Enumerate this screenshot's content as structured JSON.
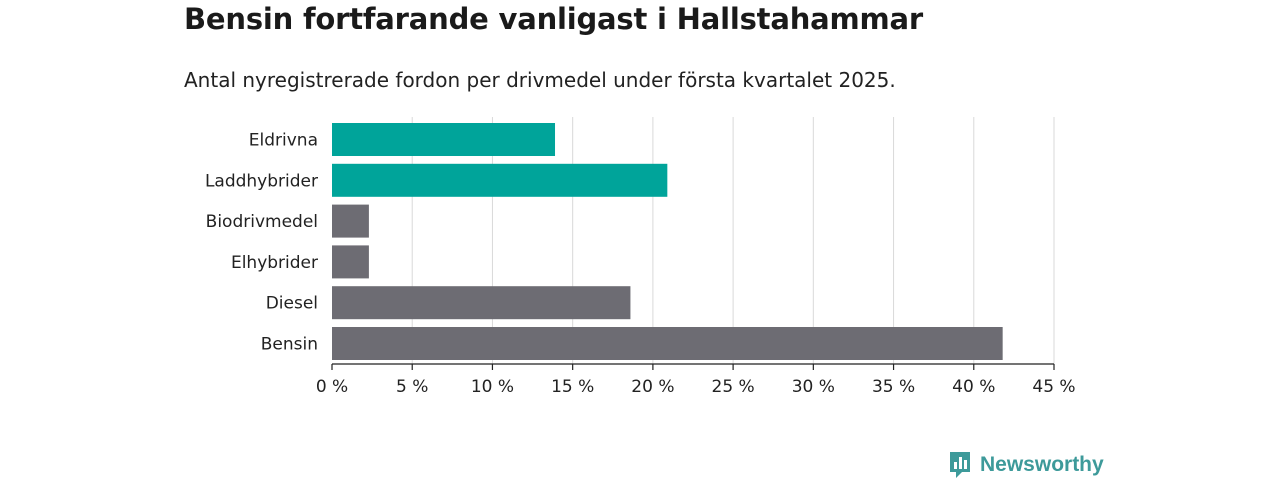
{
  "header": {
    "title": "Bensin fortfarande vanligast i Hallstahammar",
    "subtitle": "Antal nyregistrerade fordon per drivmedel under första kvartalet 2025."
  },
  "brand": {
    "name": "Newsworthy",
    "icon": "newsworthy-logo-icon",
    "color": "#3d9a9a"
  },
  "chart_data": {
    "type": "bar",
    "orientation": "horizontal",
    "categories": [
      "Eldrivna",
      "Laddhybrider",
      "Biodrivmedel",
      "Elhybrider",
      "Diesel",
      "Bensin"
    ],
    "values": [
      13.9,
      20.9,
      2.3,
      2.3,
      18.6,
      41.8
    ],
    "colors": [
      "#00a49a",
      "#00a49a",
      "#6d6c73",
      "#6d6c73",
      "#6d6c73",
      "#6d6c73"
    ],
    "xlim": [
      0,
      45
    ],
    "xticks": [
      0,
      5,
      10,
      15,
      20,
      25,
      30,
      35,
      40,
      45
    ],
    "xtick_labels": [
      "0 %",
      "5 %",
      "10 %",
      "15 %",
      "20 %",
      "25 %",
      "30 %",
      "35 %",
      "40 %",
      "45 %"
    ],
    "grid": true
  }
}
